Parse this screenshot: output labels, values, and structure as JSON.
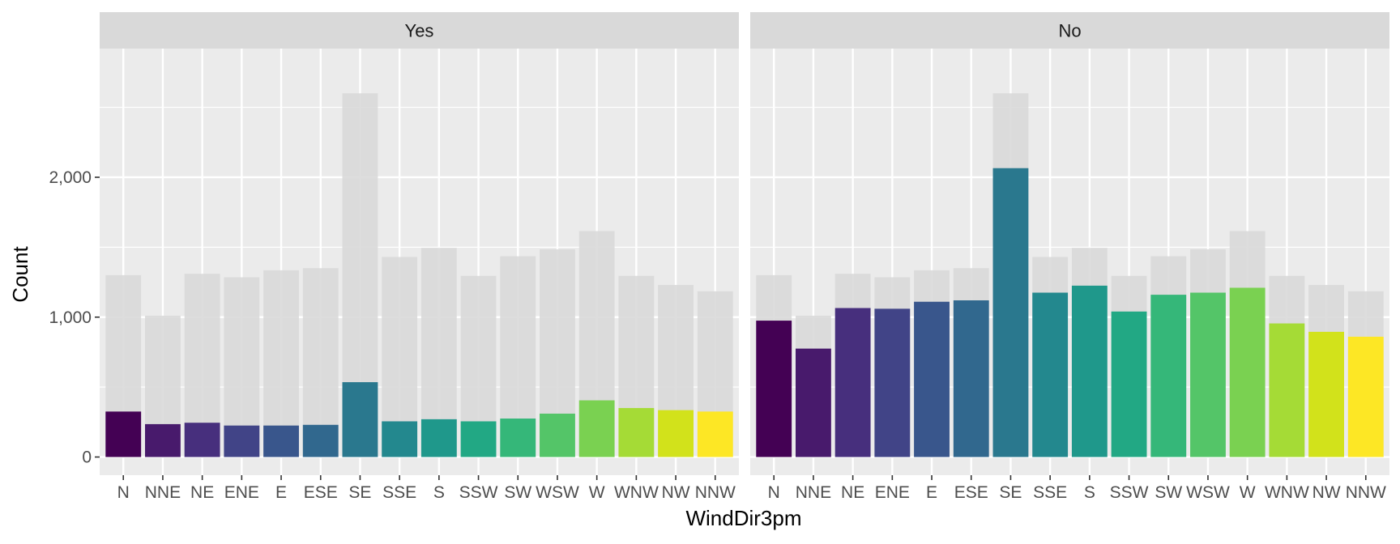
{
  "chart_data": {
    "type": "bar",
    "xlabel": "WindDir3pm",
    "ylabel": "Count",
    "ylim": [
      -130,
      2920
    ],
    "y_ticks": [
      0,
      1000,
      2000
    ],
    "y_tick_labels": [
      "0",
      "1,000",
      "2,000"
    ],
    "categories": [
      "N",
      "NNE",
      "NE",
      "ENE",
      "E",
      "ESE",
      "SE",
      "SSE",
      "S",
      "SSW",
      "SW",
      "WSW",
      "W",
      "WNW",
      "NW",
      "NNW"
    ],
    "colors": [
      "#440154",
      "#481A6C",
      "#472F7D",
      "#414487",
      "#39568C",
      "#31688E",
      "#2A788E",
      "#23888E",
      "#1F988B",
      "#22A884",
      "#35B779",
      "#54C568",
      "#7AD151",
      "#A5DB36",
      "#D2E21B",
      "#FDE725"
    ],
    "background_color": "#d9d9d9",
    "panel_background": "#ebebeb",
    "strip_background": "#d9d9d9",
    "grid": true,
    "total_counts": [
      1300,
      1010,
      1310,
      1285,
      1335,
      1350,
      2600,
      1430,
      1495,
      1295,
      1435,
      1485,
      1615,
      1295,
      1230,
      1185
    ],
    "panels": [
      {
        "strip": "Yes",
        "values": [
          325,
          235,
          245,
          225,
          225,
          230,
          535,
          255,
          270,
          255,
          275,
          310,
          405,
          350,
          335,
          325
        ]
      },
      {
        "strip": "No",
        "values": [
          975,
          775,
          1065,
          1060,
          1110,
          1120,
          2065,
          1175,
          1225,
          1040,
          1160,
          1175,
          1210,
          955,
          895,
          860
        ]
      }
    ]
  }
}
